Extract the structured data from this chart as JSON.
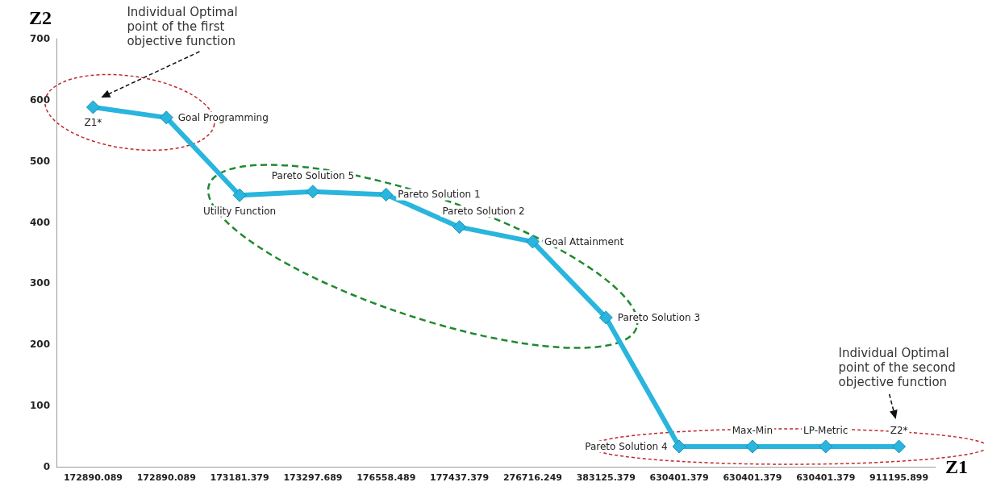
{
  "chart_data": {
    "type": "line",
    "xlabel": "Z1",
    "ylabel": "Z2",
    "categories": [
      "172890.089",
      "172890.089",
      "173181.379",
      "173297.689",
      "176558.489",
      "177437.379",
      "276716.249",
      "383125.379",
      "630401.379",
      "630401.379",
      "630401.379",
      "911195.899"
    ],
    "series": [
      {
        "color": "#29b5dd",
        "values": [
          588,
          571,
          444,
          450,
          445,
          392,
          368,
          244,
          33,
          33,
          33,
          33
        ]
      }
    ],
    "ylim": [
      0,
      700
    ],
    "yticks": [
      0,
      100,
      200,
      300,
      400,
      500,
      600,
      700
    ],
    "grid": false,
    "marker": "diamond",
    "line_style": "solid",
    "annotations": [
      {
        "text": "Z1*",
        "x": "172890.089",
        "y": 588
      },
      "Goal Programming",
      {
        "text": "Utility Function",
        "x": "173181.379",
        "y": 444
      },
      {
        "text": "Pareto Solution 5",
        "x": "173297.689",
        "y": 450
      },
      {
        "text": "Pareto Solution 1",
        "x": "176558.489",
        "y": 445
      },
      {
        "text": "Pareto Solution 2",
        "x": "177437.379",
        "y": 392
      },
      {
        "text": "Goal Attainment",
        "x": "276716.249",
        "y": 368
      },
      {
        "text": "Pareto Solution 3",
        "x": "383125.379",
        "y": 244
      },
      {
        "text": "Pareto Solution 4",
        "x": "630401.379",
        "y": 33
      },
      "Max-Min",
      "LP-Metric",
      {
        "text": "Z2*",
        "x": "911195.899",
        "y": 33
      },
      "Individual Optimal point of the first objective function",
      "Individual Optimal point of the second objective function"
    ]
  }
}
